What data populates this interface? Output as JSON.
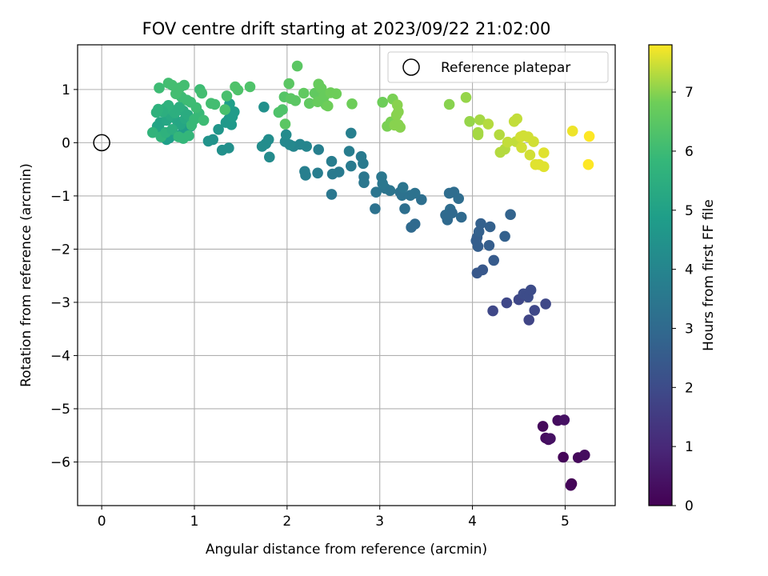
{
  "chart_data": {
    "type": "scatter",
    "title": "FOV centre drift starting at 2023/09/22 21:02:00",
    "xlabel": "Angular distance from reference (arcmin)",
    "ylabel": "Rotation from reference (arcmin)",
    "colorbar_label": "Hours from first FF file",
    "xlim": [
      -0.26,
      5.54
    ],
    "ylim": [
      -6.82,
      1.84
    ],
    "x_ticks": [
      0,
      1,
      2,
      3,
      4,
      5
    ],
    "y_ticks": [
      1,
      0,
      -1,
      -2,
      -3,
      -4,
      -5,
      -6
    ],
    "colorbar_range": [
      0,
      7.8
    ],
    "colorbar_ticks": [
      0,
      1,
      2,
      3,
      4,
      5,
      6,
      7
    ],
    "colormap": "viridis",
    "grid": true,
    "legend": {
      "label": "Reference platepar",
      "placement": "top-right"
    },
    "reference_point": {
      "x": 0,
      "y": 0
    },
    "points": [
      {
        "x": 4.76,
        "y": -5.33,
        "t": 0.2
      },
      {
        "x": 4.79,
        "y": -5.55,
        "t": 0.3
      },
      {
        "x": 4.82,
        "y": -5.58,
        "t": 0.3
      },
      {
        "x": 4.84,
        "y": -5.56,
        "t": 0.4
      },
      {
        "x": 4.92,
        "y": -5.22,
        "t": 0.3
      },
      {
        "x": 4.99,
        "y": -5.21,
        "t": 0.4
      },
      {
        "x": 4.98,
        "y": -5.91,
        "t": 0.1
      },
      {
        "x": 5.07,
        "y": -6.41,
        "t": 0.0
      },
      {
        "x": 5.06,
        "y": -6.44,
        "t": 0.1
      },
      {
        "x": 5.14,
        "y": -5.92,
        "t": 0.2
      },
      {
        "x": 5.21,
        "y": -5.87,
        "t": 0.3
      },
      {
        "x": 4.22,
        "y": -3.16,
        "t": 1.9
      },
      {
        "x": 4.37,
        "y": -3.01,
        "t": 1.9
      },
      {
        "x": 4.5,
        "y": -2.95,
        "t": 1.9
      },
      {
        "x": 4.55,
        "y": -2.84,
        "t": 2.0
      },
      {
        "x": 4.6,
        "y": -2.9,
        "t": 2.0
      },
      {
        "x": 4.63,
        "y": -2.77,
        "t": 2.0
      },
      {
        "x": 4.61,
        "y": -3.33,
        "t": 1.8
      },
      {
        "x": 4.67,
        "y": -3.15,
        "t": 1.9
      },
      {
        "x": 4.79,
        "y": -3.03,
        "t": 1.9
      },
      {
        "x": 4.05,
        "y": -2.45,
        "t": 2.4
      },
      {
        "x": 4.11,
        "y": -2.39,
        "t": 2.4
      },
      {
        "x": 4.23,
        "y": -2.21,
        "t": 2.5
      },
      {
        "x": 4.04,
        "y": -1.84,
        "t": 2.6
      },
      {
        "x": 4.06,
        "y": -1.95,
        "t": 2.6
      },
      {
        "x": 4.05,
        "y": -1.78,
        "t": 2.6
      },
      {
        "x": 4.07,
        "y": -1.67,
        "t": 2.7
      },
      {
        "x": 4.09,
        "y": -1.52,
        "t": 2.7
      },
      {
        "x": 4.18,
        "y": -1.93,
        "t": 2.6
      },
      {
        "x": 4.19,
        "y": -1.58,
        "t": 2.7
      },
      {
        "x": 4.35,
        "y": -1.76,
        "t": 2.7
      },
      {
        "x": 4.41,
        "y": -1.35,
        "t": 2.8
      },
      {
        "x": 3.71,
        "y": -1.36,
        "t": 3.0
      },
      {
        "x": 3.73,
        "y": -1.45,
        "t": 3.0
      },
      {
        "x": 3.75,
        "y": -0.95,
        "t": 3.1
      },
      {
        "x": 3.76,
        "y": -1.25,
        "t": 3.1
      },
      {
        "x": 3.78,
        "y": -1.32,
        "t": 3.0
      },
      {
        "x": 3.8,
        "y": -0.93,
        "t": 3.1
      },
      {
        "x": 3.85,
        "y": -1.05,
        "t": 3.1
      },
      {
        "x": 3.88,
        "y": -1.4,
        "t": 3.0
      },
      {
        "x": 3.34,
        "y": -1.59,
        "t": 3.0
      },
      {
        "x": 3.38,
        "y": -1.53,
        "t": 3.0
      },
      {
        "x": 3.45,
        "y": -1.07,
        "t": 3.2
      },
      {
        "x": 3.38,
        "y": -0.95,
        "t": 3.3
      },
      {
        "x": 3.33,
        "y": -0.99,
        "t": 3.3
      },
      {
        "x": 3.27,
        "y": -1.24,
        "t": 3.2
      },
      {
        "x": 3.24,
        "y": -0.99,
        "t": 3.3
      },
      {
        "x": 3.22,
        "y": -0.93,
        "t": 3.3
      },
      {
        "x": 3.25,
        "y": -0.84,
        "t": 3.4
      },
      {
        "x": 3.11,
        "y": -0.9,
        "t": 3.4
      },
      {
        "x": 3.06,
        "y": -0.86,
        "t": 3.4
      },
      {
        "x": 3.03,
        "y": -0.77,
        "t": 3.5
      },
      {
        "x": 3.02,
        "y": -0.64,
        "t": 3.5
      },
      {
        "x": 2.96,
        "y": -0.93,
        "t": 3.4
      },
      {
        "x": 2.95,
        "y": -1.24,
        "t": 3.3
      },
      {
        "x": 2.83,
        "y": -0.64,
        "t": 3.5
      },
      {
        "x": 2.83,
        "y": -0.75,
        "t": 3.5
      },
      {
        "x": 2.82,
        "y": -0.39,
        "t": 3.6
      },
      {
        "x": 2.8,
        "y": -0.26,
        "t": 3.6
      },
      {
        "x": 2.69,
        "y": -0.44,
        "t": 3.6
      },
      {
        "x": 2.67,
        "y": -0.16,
        "t": 3.7
      },
      {
        "x": 2.69,
        "y": 0.18,
        "t": 3.8
      },
      {
        "x": 2.56,
        "y": -0.55,
        "t": 3.6
      },
      {
        "x": 2.49,
        "y": -0.59,
        "t": 3.6
      },
      {
        "x": 2.48,
        "y": -0.97,
        "t": 3.5
      },
      {
        "x": 2.48,
        "y": -0.35,
        "t": 3.7
      },
      {
        "x": 2.33,
        "y": -0.57,
        "t": 3.7
      },
      {
        "x": 2.34,
        "y": -0.13,
        "t": 3.8
      },
      {
        "x": 2.19,
        "y": -0.54,
        "t": 3.8
      },
      {
        "x": 2.2,
        "y": -0.61,
        "t": 3.8
      },
      {
        "x": 2.21,
        "y": -0.07,
        "t": 4.0
      },
      {
        "x": 2.14,
        "y": -0.03,
        "t": 4.0
      },
      {
        "x": 2.07,
        "y": -0.07,
        "t": 4.0
      },
      {
        "x": 2.03,
        "y": -0.04,
        "t": 4.1
      },
      {
        "x": 1.98,
        "y": 0.02,
        "t": 4.1
      },
      {
        "x": 1.99,
        "y": 0.15,
        "t": 4.2
      },
      {
        "x": 1.81,
        "y": -0.27,
        "t": 4.2
      },
      {
        "x": 1.77,
        "y": -0.02,
        "t": 4.3
      },
      {
        "x": 1.8,
        "y": 0.06,
        "t": 4.3
      },
      {
        "x": 1.73,
        "y": -0.07,
        "t": 4.3
      },
      {
        "x": 1.75,
        "y": 0.67,
        "t": 4.4
      },
      {
        "x": 1.3,
        "y": -0.14,
        "t": 4.4
      },
      {
        "x": 1.37,
        "y": -0.1,
        "t": 4.4
      },
      {
        "x": 1.2,
        "y": 0.06,
        "t": 4.5
      },
      {
        "x": 1.15,
        "y": 0.03,
        "t": 4.5
      },
      {
        "x": 1.26,
        "y": 0.25,
        "t": 4.6
      },
      {
        "x": 1.34,
        "y": 0.38,
        "t": 4.7
      },
      {
        "x": 1.37,
        "y": 0.44,
        "t": 4.7
      },
      {
        "x": 1.4,
        "y": 0.34,
        "t": 4.7
      },
      {
        "x": 1.41,
        "y": 0.49,
        "t": 4.8
      },
      {
        "x": 1.43,
        "y": 0.58,
        "t": 4.8
      },
      {
        "x": 1.38,
        "y": 0.73,
        "t": 4.9
      },
      {
        "x": 0.96,
        "y": 0.31,
        "t": 4.7
      },
      {
        "x": 0.88,
        "y": 0.21,
        "t": 4.8
      },
      {
        "x": 0.8,
        "y": 0.14,
        "t": 4.8
      },
      {
        "x": 0.73,
        "y": 0.09,
        "t": 4.9
      },
      {
        "x": 0.7,
        "y": 0.06,
        "t": 4.9
      },
      {
        "x": 0.62,
        "y": 0.26,
        "t": 5.0
      },
      {
        "x": 0.6,
        "y": 0.31,
        "t": 5.1
      },
      {
        "x": 0.63,
        "y": 0.38,
        "t": 5.1
      },
      {
        "x": 0.7,
        "y": 0.42,
        "t": 5.2
      },
      {
        "x": 0.74,
        "y": 0.52,
        "t": 5.3
      },
      {
        "x": 0.78,
        "y": 0.47,
        "t": 5.3
      },
      {
        "x": 0.82,
        "y": 0.39,
        "t": 5.2
      },
      {
        "x": 0.85,
        "y": 0.34,
        "t": 5.2
      },
      {
        "x": 0.9,
        "y": 0.45,
        "t": 5.3
      },
      {
        "x": 0.93,
        "y": 0.52,
        "t": 5.4
      },
      {
        "x": 0.88,
        "y": 0.6,
        "t": 5.4
      },
      {
        "x": 0.84,
        "y": 0.67,
        "t": 5.5
      },
      {
        "x": 0.79,
        "y": 0.56,
        "t": 5.5
      },
      {
        "x": 0.75,
        "y": 0.62,
        "t": 5.5
      },
      {
        "x": 0.72,
        "y": 0.7,
        "t": 5.6
      },
      {
        "x": 0.69,
        "y": 0.65,
        "t": 5.6
      },
      {
        "x": 0.66,
        "y": 0.58,
        "t": 5.5
      },
      {
        "x": 0.61,
        "y": 0.63,
        "t": 5.6
      },
      {
        "x": 0.59,
        "y": 0.57,
        "t": 5.6
      },
      {
        "x": 0.55,
        "y": 0.19,
        "t": 5.7
      },
      {
        "x": 0.64,
        "y": 0.11,
        "t": 5.7
      },
      {
        "x": 0.69,
        "y": 0.19,
        "t": 5.6
      },
      {
        "x": 0.76,
        "y": 0.25,
        "t": 5.5
      },
      {
        "x": 0.83,
        "y": 0.11,
        "t": 5.8
      },
      {
        "x": 0.88,
        "y": 0.08,
        "t": 5.8
      },
      {
        "x": 0.94,
        "y": 0.13,
        "t": 5.8
      },
      {
        "x": 0.97,
        "y": 0.33,
        "t": 5.9
      },
      {
        "x": 1.0,
        "y": 0.44,
        "t": 5.9
      },
      {
        "x": 1.05,
        "y": 0.55,
        "t": 5.9
      },
      {
        "x": 1.02,
        "y": 0.66,
        "t": 6.0
      },
      {
        "x": 0.96,
        "y": 0.76,
        "t": 6.0
      },
      {
        "x": 0.92,
        "y": 0.8,
        "t": 6.0
      },
      {
        "x": 0.86,
        "y": 0.86,
        "t": 6.0
      },
      {
        "x": 0.8,
        "y": 0.92,
        "t": 6.1
      },
      {
        "x": 0.84,
        "y": 1.03,
        "t": 6.1
      },
      {
        "x": 0.89,
        "y": 1.08,
        "t": 6.1
      },
      {
        "x": 0.76,
        "y": 1.08,
        "t": 6.1
      },
      {
        "x": 0.72,
        "y": 1.12,
        "t": 6.1
      },
      {
        "x": 0.62,
        "y": 1.03,
        "t": 6.0
      },
      {
        "x": 1.06,
        "y": 1.0,
        "t": 6.0
      },
      {
        "x": 1.08,
        "y": 0.93,
        "t": 6.1
      },
      {
        "x": 1.18,
        "y": 0.74,
        "t": 6.1
      },
      {
        "x": 1.22,
        "y": 0.72,
        "t": 6.1
      },
      {
        "x": 1.33,
        "y": 0.62,
        "t": 6.2
      },
      {
        "x": 1.35,
        "y": 0.88,
        "t": 6.2
      },
      {
        "x": 1.44,
        "y": 1.05,
        "t": 6.3
      },
      {
        "x": 1.47,
        "y": 0.99,
        "t": 6.3
      },
      {
        "x": 1.6,
        "y": 1.05,
        "t": 6.3
      },
      {
        "x": 1.1,
        "y": 0.42,
        "t": 6.0
      },
      {
        "x": 1.91,
        "y": 0.57,
        "t": 6.3
      },
      {
        "x": 1.95,
        "y": 0.62,
        "t": 6.3
      },
      {
        "x": 1.97,
        "y": 0.86,
        "t": 6.4
      },
      {
        "x": 2.02,
        "y": 1.11,
        "t": 6.5
      },
      {
        "x": 2.04,
        "y": 0.83,
        "t": 6.5
      },
      {
        "x": 2.09,
        "y": 0.79,
        "t": 6.5
      },
      {
        "x": 2.11,
        "y": 1.44,
        "t": 6.5
      },
      {
        "x": 2.18,
        "y": 0.93,
        "t": 6.6
      },
      {
        "x": 2.24,
        "y": 0.74,
        "t": 6.6
      },
      {
        "x": 1.98,
        "y": 0.35,
        "t": 6.5
      },
      {
        "x": 2.3,
        "y": 0.93,
        "t": 6.6
      },
      {
        "x": 2.34,
        "y": 1.1,
        "t": 6.7
      },
      {
        "x": 2.33,
        "y": 0.77,
        "t": 6.7
      },
      {
        "x": 2.37,
        "y": 1.02,
        "t": 6.7
      },
      {
        "x": 2.4,
        "y": 0.87,
        "t": 6.7
      },
      {
        "x": 2.42,
        "y": 0.71,
        "t": 6.7
      },
      {
        "x": 2.44,
        "y": 0.69,
        "t": 6.8
      },
      {
        "x": 2.47,
        "y": 0.94,
        "t": 6.8
      },
      {
        "x": 2.53,
        "y": 0.92,
        "t": 6.8
      },
      {
        "x": 2.7,
        "y": 0.73,
        "t": 6.8
      },
      {
        "x": 3.03,
        "y": 0.76,
        "t": 6.8
      },
      {
        "x": 3.08,
        "y": 0.31,
        "t": 6.9
      },
      {
        "x": 3.12,
        "y": 0.39,
        "t": 6.9
      },
      {
        "x": 3.14,
        "y": 0.82,
        "t": 6.9
      },
      {
        "x": 3.16,
        "y": 0.33,
        "t": 7.0
      },
      {
        "x": 3.18,
        "y": 0.52,
        "t": 7.0
      },
      {
        "x": 3.19,
        "y": 0.71,
        "t": 7.0
      },
      {
        "x": 3.2,
        "y": 0.34,
        "t": 7.0
      },
      {
        "x": 3.22,
        "y": 0.29,
        "t": 7.0
      },
      {
        "x": 3.2,
        "y": 0.58,
        "t": 7.0
      },
      {
        "x": 3.75,
        "y": 0.72,
        "t": 7.0
      },
      {
        "x": 3.97,
        "y": 0.4,
        "t": 7.1
      },
      {
        "x": 3.93,
        "y": 0.85,
        "t": 7.1
      },
      {
        "x": 4.06,
        "y": 0.19,
        "t": 7.2
      },
      {
        "x": 4.06,
        "y": 0.15,
        "t": 7.2
      },
      {
        "x": 4.08,
        "y": 0.43,
        "t": 7.2
      },
      {
        "x": 4.17,
        "y": 0.35,
        "t": 7.3
      },
      {
        "x": 4.29,
        "y": 0.15,
        "t": 7.3
      },
      {
        "x": 4.3,
        "y": -0.18,
        "t": 7.3
      },
      {
        "x": 4.35,
        "y": -0.12,
        "t": 7.3
      },
      {
        "x": 4.38,
        "y": 0.01,
        "t": 7.4
      },
      {
        "x": 4.45,
        "y": 0.4,
        "t": 7.4
      },
      {
        "x": 4.48,
        "y": 0.45,
        "t": 7.4
      },
      {
        "x": 4.47,
        "y": 0.02,
        "t": 7.4
      },
      {
        "x": 4.52,
        "y": 0.11,
        "t": 7.5
      },
      {
        "x": 4.53,
        "y": -0.09,
        "t": 7.5
      },
      {
        "x": 4.55,
        "y": 0.13,
        "t": 7.5
      },
      {
        "x": 4.6,
        "y": 0.11,
        "t": 7.5
      },
      {
        "x": 4.62,
        "y": -0.23,
        "t": 7.5
      },
      {
        "x": 4.66,
        "y": 0.02,
        "t": 7.5
      },
      {
        "x": 4.68,
        "y": -0.41,
        "t": 7.6
      },
      {
        "x": 4.72,
        "y": -0.41,
        "t": 7.6
      },
      {
        "x": 4.77,
        "y": -0.45,
        "t": 7.6
      },
      {
        "x": 4.77,
        "y": -0.19,
        "t": 7.6
      },
      {
        "x": 5.08,
        "y": 0.22,
        "t": 7.7
      },
      {
        "x": 5.26,
        "y": 0.12,
        "t": 7.8
      },
      {
        "x": 5.25,
        "y": -0.41,
        "t": 7.8
      }
    ]
  }
}
